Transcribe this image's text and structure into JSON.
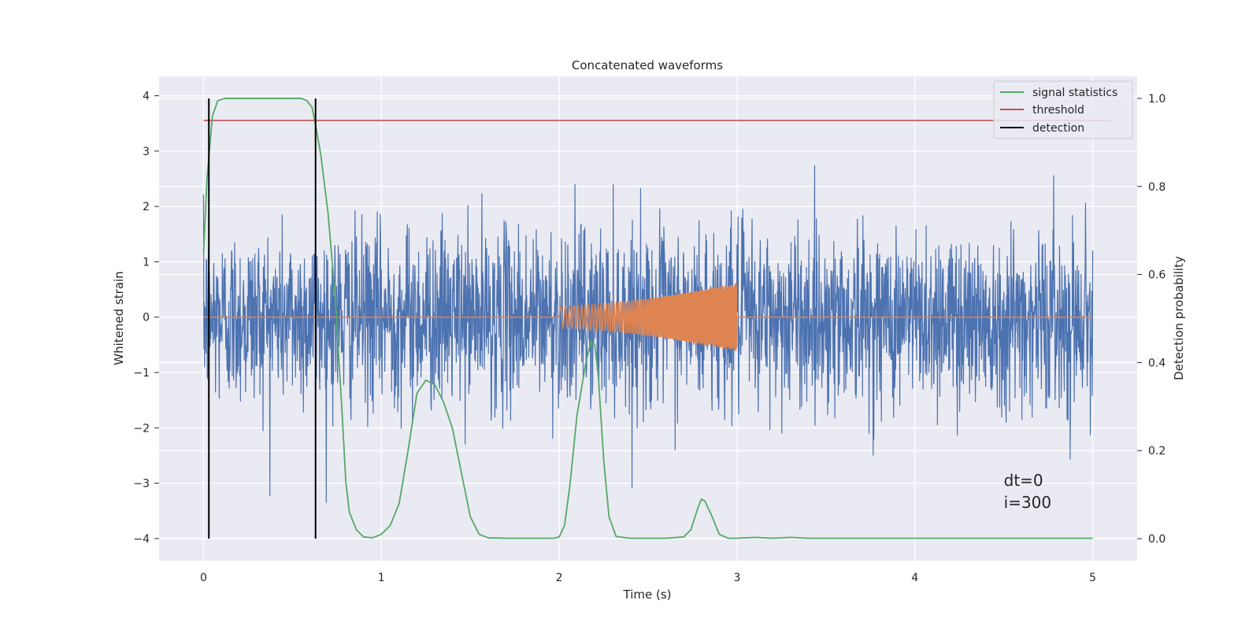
{
  "chart_data": {
    "type": "line",
    "title": "Concatenated waveforms",
    "xlabel": "Time (s)",
    "ylabel_left": "Whitened strain",
    "ylabel_right": "Detection probability",
    "xlim": [
      -0.25,
      5.25
    ],
    "ylim_left": [
      -4.4,
      4.35
    ],
    "ylim_right": [
      -0.05,
      1.05
    ],
    "xticks": [
      0,
      1,
      2,
      3,
      4,
      5
    ],
    "xtick_labels": [
      "0",
      "1",
      "2",
      "3",
      "4",
      "5"
    ],
    "yticks_left": [
      -4,
      -3,
      -2,
      -1,
      0,
      1,
      2,
      3,
      4
    ],
    "ytick_labels_left": [
      "−4",
      "−3",
      "−2",
      "−1",
      "0",
      "1",
      "2",
      "3",
      "4"
    ],
    "yticks_right": [
      0.0,
      0.2,
      0.4,
      0.6,
      0.8,
      1.0
    ],
    "ytick_labels_right": [
      "0.0",
      "0.2",
      "0.4",
      "0.6",
      "0.8",
      "1.0"
    ],
    "grid": true,
    "legend_position": "top-right",
    "series": [
      {
        "name": "",
        "axis": "left",
        "kind": "noise",
        "color": "#4c72b0",
        "x_range": [
          0,
          5
        ],
        "typical_amplitude": 0.8,
        "peak_range": [
          -3.8,
          3.95
        ]
      },
      {
        "name": "",
        "axis": "left",
        "kind": "chirp",
        "color": "#dd8452",
        "baseline": 0,
        "x_range": [
          0,
          5
        ],
        "chirp_x_range": [
          2,
          3
        ],
        "amplitude_start": 0.2,
        "amplitude_end": 0.62
      },
      {
        "name": "signal statistics",
        "axis": "right",
        "color": "#55a868",
        "x": [
          0,
          0.02,
          0.05,
          0.08,
          0.12,
          0.2,
          0.3,
          0.4,
          0.5,
          0.55,
          0.58,
          0.61,
          0.63,
          0.66,
          0.7,
          0.74,
          0.78,
          0.8,
          0.82,
          0.86,
          0.9,
          0.95,
          1.0,
          1.05,
          1.1,
          1.15,
          1.2,
          1.25,
          1.3,
          1.35,
          1.4,
          1.45,
          1.5,
          1.55,
          1.6,
          1.7,
          1.8,
          1.9,
          1.97,
          2.0,
          2.03,
          2.06,
          2.1,
          2.15,
          2.18,
          2.2,
          2.22,
          2.25,
          2.28,
          2.32,
          2.4,
          2.5,
          2.6,
          2.7,
          2.74,
          2.78,
          2.8,
          2.82,
          2.86,
          2.9,
          2.95,
          3.0,
          3.1,
          3.2,
          3.3,
          3.4,
          3.6,
          4.0,
          4.5,
          5.0
        ],
        "y": [
          0.65,
          0.82,
          0.96,
          0.995,
          1.0,
          1.0,
          1.0,
          1.0,
          1.0,
          1.0,
          0.995,
          0.98,
          0.94,
          0.87,
          0.74,
          0.55,
          0.28,
          0.13,
          0.06,
          0.02,
          0.004,
          0.002,
          0.01,
          0.03,
          0.08,
          0.2,
          0.33,
          0.36,
          0.35,
          0.31,
          0.25,
          0.15,
          0.05,
          0.01,
          0.002,
          0.001,
          0.001,
          0.001,
          0.001,
          0.004,
          0.03,
          0.12,
          0.28,
          0.4,
          0.45,
          0.44,
          0.37,
          0.18,
          0.05,
          0.005,
          0.001,
          0.001,
          0.001,
          0.004,
          0.02,
          0.07,
          0.09,
          0.085,
          0.05,
          0.01,
          0.001,
          0.001,
          0.003,
          0.001,
          0.003,
          0.001,
          0.001,
          0.001,
          0.001,
          0.001
        ]
      },
      {
        "name": "threshold",
        "axis": "right",
        "color": "#c44e52",
        "x": [
          0,
          5.1
        ],
        "y": [
          0.95,
          0.95
        ]
      },
      {
        "name": "detection",
        "axis": "right",
        "color": "#000000",
        "kind": "vlines",
        "x": [
          0.03,
          0.63
        ],
        "ymin": 0.0,
        "ymax": 1.0
      }
    ],
    "annotations": [
      {
        "text": "dt=0",
        "x": 4.5,
        "y": -3.05
      },
      {
        "text": "i=300",
        "x": 4.5,
        "y": -3.45
      }
    ],
    "colors": {
      "background": "#eaeaf2",
      "grid": "#ffffff",
      "text": "#262626"
    }
  }
}
